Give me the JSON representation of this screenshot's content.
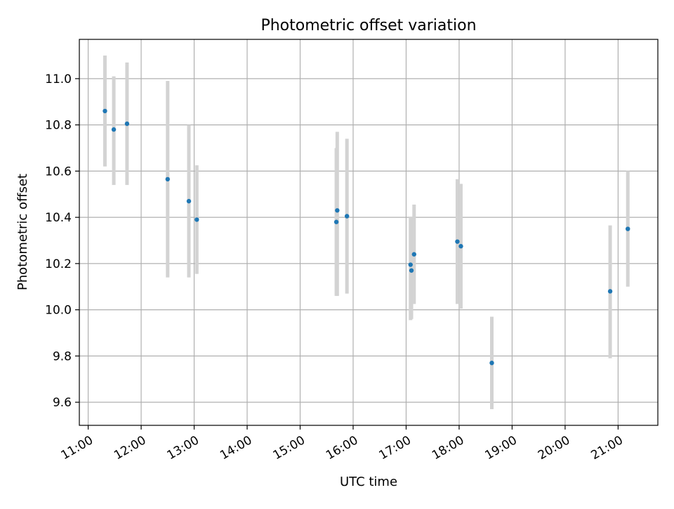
{
  "chart_data": {
    "type": "scatter",
    "title": "Photometric offset variation",
    "xlabel": "UTC time",
    "ylabel": "Photometric offset",
    "xlim": [
      "10:50",
      "21:45"
    ],
    "ylim": [
      9.5,
      11.17
    ],
    "x_ticks": [
      "11:00",
      "12:00",
      "13:00",
      "14:00",
      "15:00",
      "16:00",
      "17:00",
      "18:00",
      "19:00",
      "20:00",
      "21:00"
    ],
    "y_ticks": [
      "9.6",
      "9.8",
      "10.0",
      "10.2",
      "10.4",
      "10.6",
      "10.8",
      "11.0"
    ],
    "grid": true,
    "point_color": "#1f77b4",
    "errorbar_color": "#d3d3d3",
    "points": [
      {
        "x": "11:19",
        "y": 10.86,
        "ylo": 10.62,
        "yhi": 11.1
      },
      {
        "x": "11:29",
        "y": 10.78,
        "ylo": 10.54,
        "yhi": 11.01
      },
      {
        "x": "11:44",
        "y": 10.805,
        "ylo": 10.54,
        "yhi": 11.07
      },
      {
        "x": "12:30",
        "y": 10.565,
        "ylo": 10.14,
        "yhi": 10.99
      },
      {
        "x": "12:54",
        "y": 10.47,
        "ylo": 10.14,
        "yhi": 10.8
      },
      {
        "x": "13:03",
        "y": 10.39,
        "ylo": 10.155,
        "yhi": 10.625
      },
      {
        "x": "15:42",
        "y": 10.43,
        "ylo": 10.06,
        "yhi": 10.77
      },
      {
        "x": "15:41",
        "y": 10.38,
        "ylo": 10.06,
        "yhi": 10.7
      },
      {
        "x": "15:53",
        "y": 10.405,
        "ylo": 10.07,
        "yhi": 10.74
      },
      {
        "x": "17:05",
        "y": 10.195,
        "ylo": 9.955,
        "yhi": 10.4
      },
      {
        "x": "17:06",
        "y": 10.17,
        "ylo": 9.96,
        "yhi": 10.4
      },
      {
        "x": "17:09",
        "y": 10.24,
        "ylo": 10.025,
        "yhi": 10.455
      },
      {
        "x": "17:58",
        "y": 10.295,
        "ylo": 10.025,
        "yhi": 10.565
      },
      {
        "x": "18:02",
        "y": 10.275,
        "ylo": 10.005,
        "yhi": 10.545
      },
      {
        "x": "18:37",
        "y": 9.77,
        "ylo": 9.57,
        "yhi": 9.97
      },
      {
        "x": "20:51",
        "y": 10.08,
        "ylo": 9.79,
        "yhi": 10.365
      },
      {
        "x": "21:11",
        "y": 10.35,
        "ylo": 10.1,
        "yhi": 10.6
      }
    ]
  }
}
